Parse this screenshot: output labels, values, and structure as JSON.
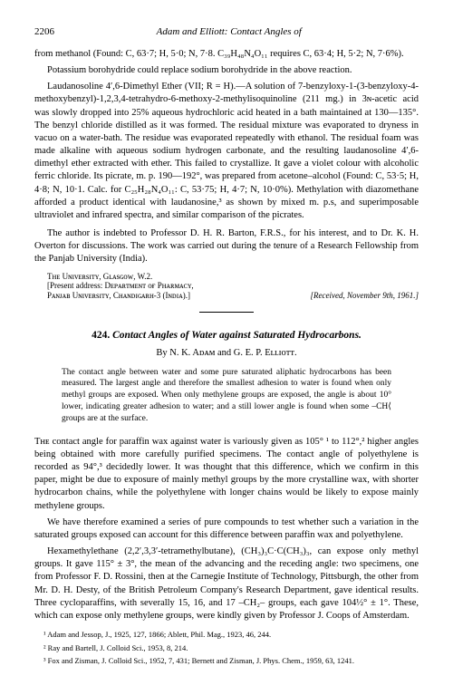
{
  "header": {
    "pageNumber": "2206",
    "runningTitle": "Adam and Elliott: Contact Angles of"
  },
  "topSection": {
    "line1": "from methanol (Found: C, 63·7; H, 5·0; N, 7·8. C₃₉H₄₈N₄O₁₁ requires C, 63·4; H, 5·2; N, 7·6%).",
    "line2": "Potassium borohydride could replace sodium borohydride in the above reaction.",
    "para1": "Laudanosoline 4′,6-Dimethyl Ether (VII; R = H).—A solution of 7-benzyloxy-1-(3-benzyloxy-4-methoxybenzyl)-1,2,3,4-tetrahydro-6-methoxy-2-methylisoquinoline (211 mg.) in 3ɴ-acetic acid was slowly dropped into 25% aqueous hydrochloric acid heated in a bath maintained at 130—135°. The benzyl chloride distilled as it was formed. The residual mixture was evaporated to dryness in vacuo on a water-bath. The residue was evaporated repeatedly with ethanol. The residual foam was made alkaline with aqueous sodium hydrogen carbonate, and the resulting laudanosoline 4′,6-dimethyl ether extracted with ether. This failed to crystallize. It gave a violet colour with alcoholic ferric chloride. Its picrate, m. p. 190—192°, was prepared from acetone–alcohol (Found: C, 53·5; H, 4·8; N, 10·1. Calc. for C₂₅H₂₈N₄O₁₁: C, 53·75; H, 4·7; N, 10·0%). Methylation with diazomethane afforded a product identical with laudanosine,³ as shown by mixed m. p.s, and superimposable ultraviolet and infrared spectra, and similar comparison of the picrates.",
    "ack": "The author is indebted to Professor D. H. R. Barton, F.R.S., for his interest, and to Dr. K. H. Overton for discussions. The work was carried out during the tenure of a Research Fellowship from the Panjab University (India).",
    "affil1": "Tʜᴇ Uɴɪᴠᴇʀsɪᴛʏ, Gʟᴀsɢᴏᴡ, W.2.",
    "affil2a": "[Present address: Dᴇᴘᴀʀᴛᴍᴇɴᴛ ᴏғ Pʜᴀʀᴍᴀᴄʏ,",
    "affil2b": "Pᴀɴᴊᴀʙ Uɴɪᴠᴇʀsɪᴛʏ, Cʜᴀɴᴅɪɢᴀʀʜ-3 (Iɴᴅɪᴀ).]",
    "received": "[Received, November 9th, 1961.]"
  },
  "article": {
    "number": "424.",
    "title": "Contact Angles of Water against Saturated Hydrocarbons.",
    "authors": "By N. K. Aᴅᴀᴍ and G. E. P. Eʟʟɪᴏᴛᴛ.",
    "abstract": "The contact angle between water and some pure saturated aliphatic hydrocarbons has been measured. The largest angle and therefore the smallest adhesion to water is found when only methyl groups are exposed. When only methylene groups are exposed, the angle is about 10° lower, indicating greater adhesion to water; and a still lower angle is found when some –CH⟨ groups are at the surface.",
    "body1": "Tʜᴇ contact angle for paraffin wax against water is variously given as 105° ¹ to 112°,² higher angles being obtained with more carefully purified specimens. The contact angle of polyethylene is recorded as 94°,³ decidedly lower. It was thought that this difference, which we confirm in this paper, might be due to exposure of mainly methyl groups by the more crystalline wax, with shorter hydrocarbon chains, while the polyethylene with longer chains would be likely to expose mainly methylene groups.",
    "body2": "We have therefore examined a series of pure compounds to test whether such a variation in the saturated groups exposed can account for this difference between paraffin wax and polyethylene.",
    "body3": "Hexamethylethane (2,2′,3,3′-tetramethylbutane), (CH₃)₃C·C(CH₃)₃, can expose only methyl groups. It gave 115° ± 3°, the mean of the advancing and the receding angle: two specimens, one from Professor F. D. Rossini, then at the Carnegie Institute of Technology, Pittsburgh, the other from Mr. D. H. Desty, of the British Petroleum Company's Research Department, gave identical results. Three cycloparaffins, with severally 15, 16, and 17 –CH₂– groups, each gave 104½° ± 1°. These, which can expose only methylene groups, were kindly given by Professor J. Coops of Amsterdam."
  },
  "footnotes": {
    "f1": "¹ Adam and Jessop, J., 1925, 127, 1866; Ablett, Phil. Mag., 1923, 46, 244.",
    "f2": "² Ray and Bartell, J. Colloid Sci., 1953, 8, 214.",
    "f3": "³ Fox and Zisman, J. Colloid Sci., 1952, 7, 431; Bernett and Zisman, J. Phys. Chem., 1959, 63, 1241."
  }
}
